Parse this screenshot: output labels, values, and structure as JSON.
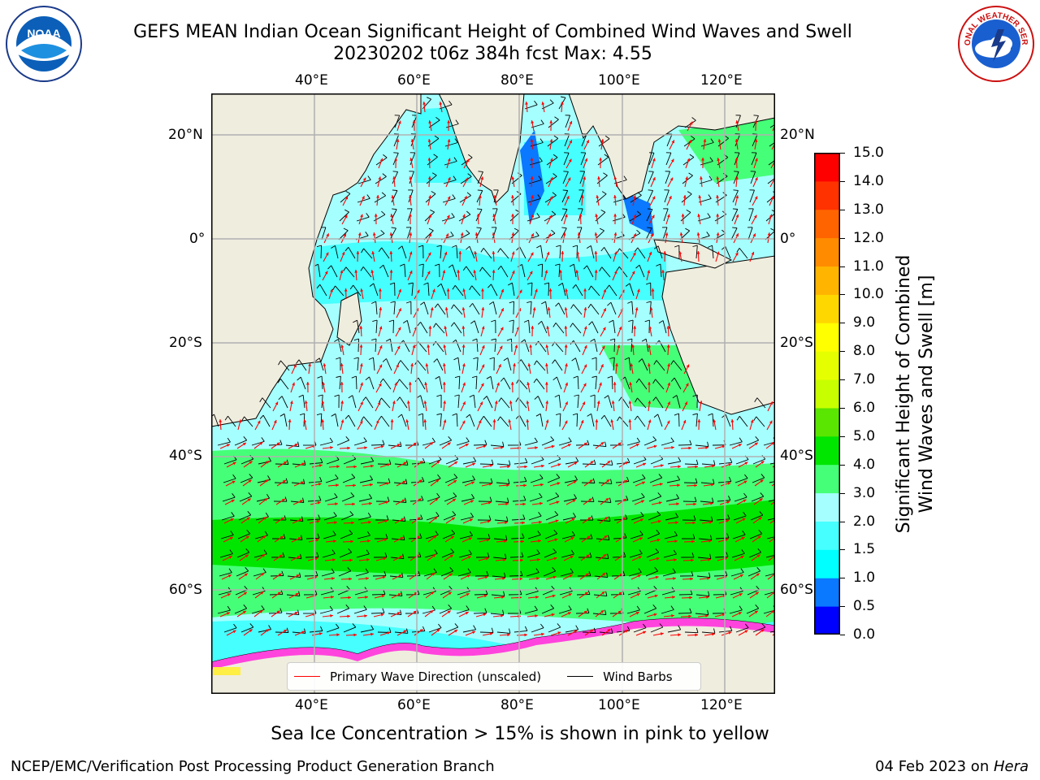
{
  "header": {
    "title_line1": "GEFS MEAN Indian Ocean Significant Height of Combined Wind Waves and Swell",
    "title_line2": "20230202 t06z 384h fcst   Max: 4.55"
  },
  "logos": {
    "left": {
      "name": "NOAA",
      "ring_text": "NATIONAL OCEANIC AND ATMOSPHERIC ADMINISTRATION · U.S. DEPARTMENT OF COMMERCE"
    },
    "right": {
      "name": "NATIONAL WEATHER SERVICE"
    }
  },
  "map": {
    "lon_ticks_top": [
      "40°E",
      "60°E",
      "80°E",
      "100°E",
      "120°E"
    ],
    "lon_ticks_bottom": [
      "40°E",
      "60°E",
      "80°E",
      "100°E",
      "120°E"
    ],
    "lat_ticks_left": [
      "20°N",
      "0°",
      "20°S",
      "40°S",
      "60°S"
    ],
    "lat_ticks_right": [
      "20°N",
      "0°",
      "20°S",
      "40°S",
      "60°S"
    ],
    "land_color": "#efedde",
    "ice_colors": [
      "#ff44dd",
      "#ffee44"
    ]
  },
  "legend": {
    "primary_wave": "Primary Wave Direction (unscaled)",
    "wind_barbs": "Wind Barbs",
    "primary_wave_color": "#ff0000",
    "wind_barb_color": "#000000"
  },
  "colorbar": {
    "title_line1": "Significant Height of Combined",
    "title_line2": "Wind Waves and Swell [m]",
    "levels": [
      "0.0",
      "0.5",
      "1.0",
      "1.5",
      "2.0",
      "3.0",
      "4.0",
      "5.0",
      "6.0",
      "7.0",
      "8.0",
      "9.0",
      "10.0",
      "11.0",
      "12.0",
      "13.0",
      "14.0",
      "15.0"
    ],
    "colors": [
      "#0000ff",
      "#0a78ff",
      "#00ffff",
      "#46ffff",
      "#a6ffff",
      "#46ff78",
      "#00e600",
      "#5ae600",
      "#c8ff00",
      "#e6ff00",
      "#ffff00",
      "#ffd700",
      "#ffb400",
      "#ff8c00",
      "#ff6400",
      "#ff3200",
      "#ff0000"
    ]
  },
  "caption": "Sea Ice Concentration > 15% is shown in pink to yellow",
  "footer": {
    "left": "NCEP/EMC/Verification Post Processing Product Generation Branch",
    "right_date": "04 Feb 2023 on ",
    "right_host": "Hera"
  }
}
